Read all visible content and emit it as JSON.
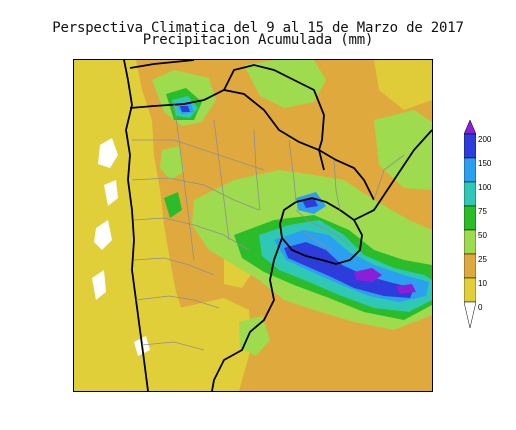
{
  "title": {
    "line1": "Perspectiva Climatica del 9 al 15 de Marzo de 2017",
    "line2": "Precipitacion Acumulada (mm)"
  },
  "legend": {
    "levels": [
      "0",
      "10",
      "25",
      "50",
      "75",
      "100",
      "150",
      "200"
    ],
    "colors": {
      "below_0": "#ffffff",
      "0_10": "#e0cf38",
      "10_25": "#e0a93e",
      "25_50": "#9edb4e",
      "50_75": "#2bbd29",
      "75_100": "#2ec8b4",
      "100_150": "#2b9ff0",
      "150_200": "#2d3cdb",
      "above_200": "#8b1ed6"
    }
  },
  "map": {
    "region": "Southern South America (Argentina, Chile, Uruguay, Paraguay, southern Brazil, Bolivia)",
    "variable": "Precipitacion Acumulada",
    "units": "mm",
    "period": "9 al 15 de Marzo de 2017"
  }
}
